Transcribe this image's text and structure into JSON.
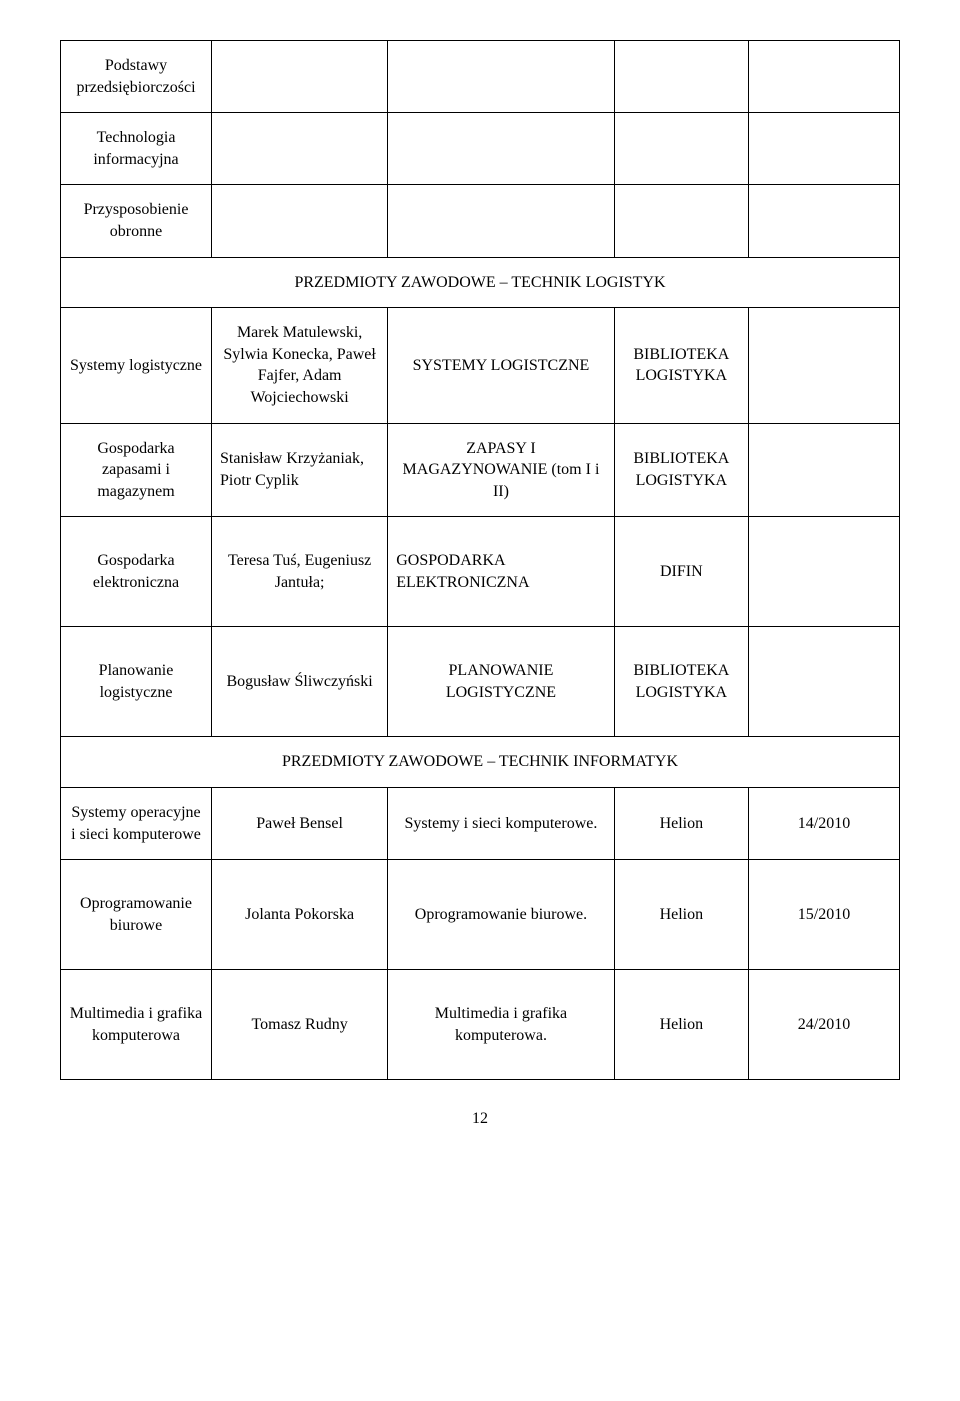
{
  "rows_top": [
    {
      "c1": "Podstawy przedsiębiorczości",
      "c2": "",
      "c3": "",
      "c4": "",
      "c5": ""
    },
    {
      "c1": "Technologia informacyjna",
      "c2": "",
      "c3": "",
      "c4": "",
      "c5": ""
    },
    {
      "c1": "Przysposobienie obronne",
      "c2": "",
      "c3": "",
      "c4": "",
      "c5": ""
    }
  ],
  "section1": {
    "title": "PRZEDMIOTY ZAWODOWE – TECHNIK LOGISTYK",
    "rows": [
      {
        "c1": "Systemy logistyczne",
        "c2": "Marek Matulewski, Sylwia Konecka, Paweł Fajfer, Adam Wojciechowski",
        "c3": "SYSTEMY LOGISTCZNE",
        "c4": "BIBLIOTEKA LOGISTYKA",
        "c5": ""
      },
      {
        "c1": "Gospodarka zapasami i magazynem",
        "c2": "Stanisław Krzyżaniak, Piotr Cyplik",
        "c3": "ZAPASY I MAGAZYNOWANIE (tom I i II)",
        "c4": "BIBLIOTEKA LOGISTYKA",
        "c5": ""
      },
      {
        "c1": "Gospodarka elektroniczna",
        "c2": "Teresa Tuś, Eugeniusz Jantuła;",
        "c3": "GOSPODARKA ELEKTRONICZNA",
        "c4": "DIFIN",
        "c5": ""
      },
      {
        "c1": "Planowanie logistyczne",
        "c2": "Bogusław Śliwczyński",
        "c3": "PLANOWANIE LOGISTYCZNE",
        "c4": "BIBLIOTEKA LOGISTYKA",
        "c5": ""
      }
    ]
  },
  "section2": {
    "title": "PRZEDMIOTY ZAWODOWE – TECHNIK INFORMATYK",
    "rows": [
      {
        "c1": "Systemy operacyjne i sieci komputerowe",
        "c2": "Paweł Bensel",
        "c3": "Systemy i sieci komputerowe.",
        "c4": "Helion",
        "c5": "14/2010"
      },
      {
        "c1": "Oprogramowanie biurowe",
        "c2": "Jolanta Pokorska",
        "c3": "Oprogramowanie biurowe.",
        "c4": "Helion",
        "c5": "15/2010"
      },
      {
        "c1": "Multimedia i grafika komputerowa",
        "c2": "Tomasz Rudny",
        "c3": "Multimedia i grafika komputerowa.",
        "c4": "Helion",
        "c5": "24/2010"
      }
    ]
  },
  "page_number": "12",
  "colors": {
    "text": "#000000",
    "background": "#ffffff",
    "border": "#000000"
  },
  "font": {
    "family": "Book Antiqua / Palatino",
    "cell_size_pt": 12
  }
}
